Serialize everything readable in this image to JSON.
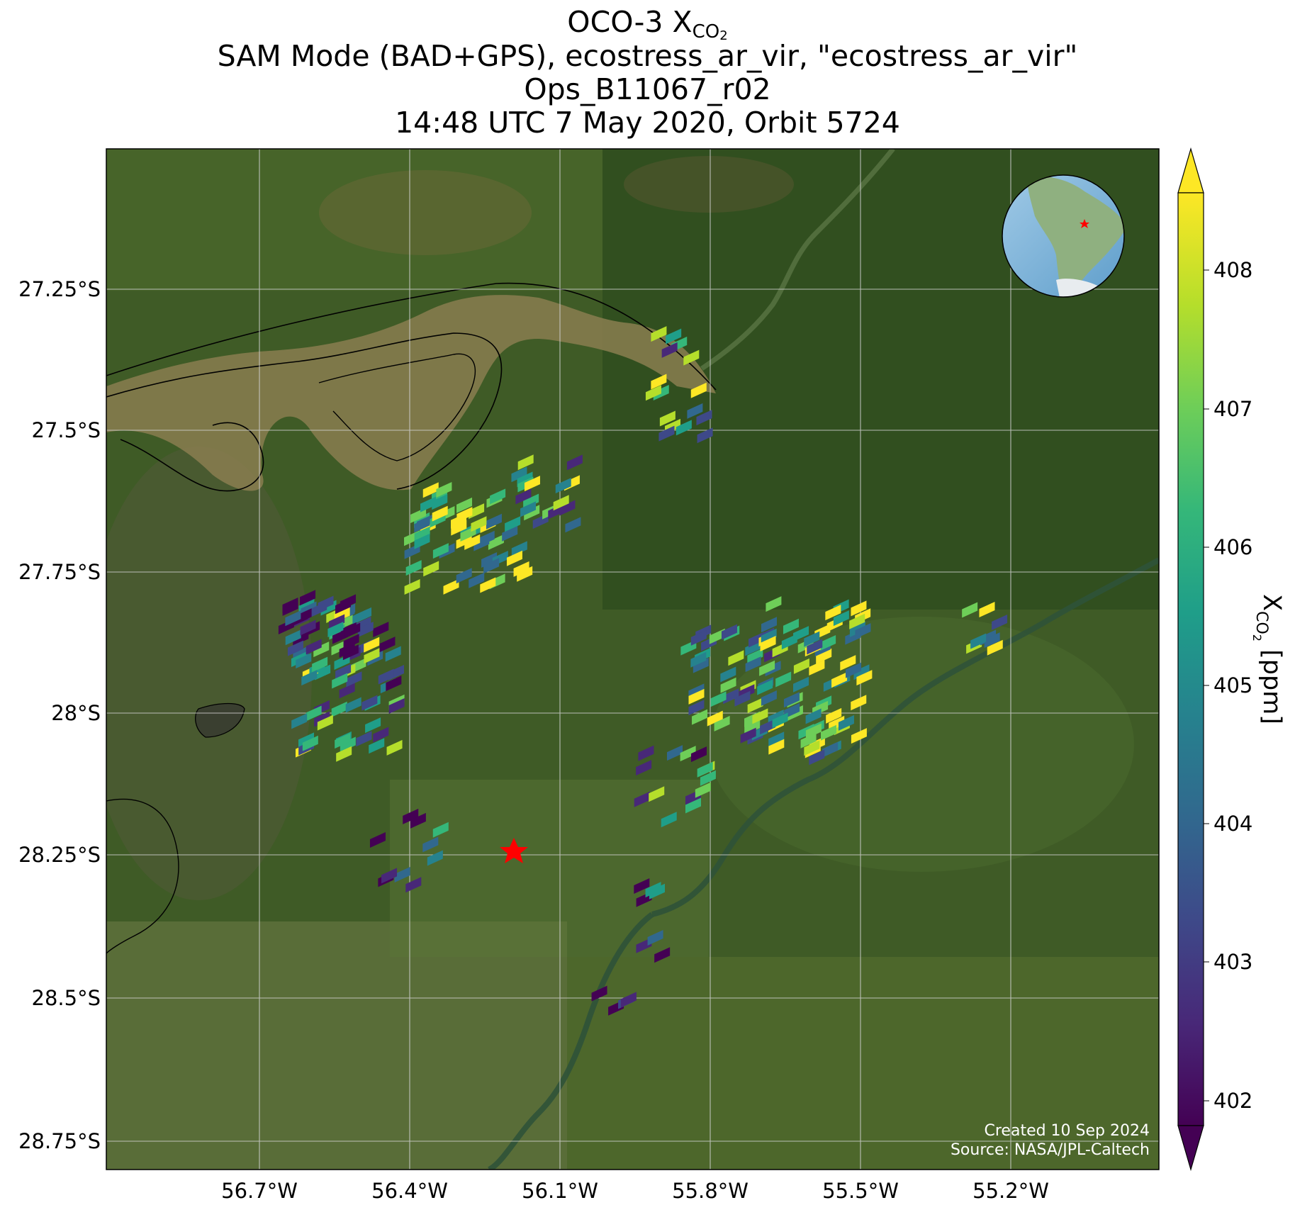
{
  "title": {
    "line1_main": "OCO-3 X",
    "line1_sub": "CO",
    "line1_subsub": "2",
    "line2": "SAM Mode (BAD+GPS), ecostress_ar_vir, \"ecostress_ar_vir\"",
    "line3": "Ops_B11067_r02",
    "line4": "14:48 UTC 7 May 2020, Orbit 5724"
  },
  "map": {
    "lat_ticks": [
      "27.25°S",
      "27.5°S",
      "27.75°S",
      "28°S",
      "28.25°S",
      "28.5°S",
      "28.75°S"
    ],
    "lon_ticks": [
      "56.7°W",
      "56.4°W",
      "56.1°W",
      "55.8°W",
      "55.5°W",
      "55.2°W"
    ],
    "gridlines": true,
    "basemap": "satellite imagery (forest, farmland, river)",
    "target_marker": "red-star",
    "inset": "globe showing South America with red star marker"
  },
  "credit": {
    "line1": "Created 10 Sep 2024",
    "line2": "Source: NASA/JPL-Caltech"
  },
  "colorbar": {
    "label_main": "X",
    "label_sub": "CO",
    "label_subsub": "2",
    "label_unit": " [ppm]",
    "ticks": [
      "402",
      "403",
      "404",
      "405",
      "406",
      "407",
      "408"
    ],
    "range": [
      401.8,
      408.6
    ],
    "colormap": "viridis",
    "extend": "both"
  },
  "colors": {
    "viridis": [
      "#440154",
      "#482878",
      "#3e4989",
      "#31688e",
      "#26828e",
      "#1f9e89",
      "#35b779",
      "#6ece58",
      "#b5de2b",
      "#fde725"
    ],
    "star": "#ff0000",
    "grid": "#d0d0d0"
  }
}
